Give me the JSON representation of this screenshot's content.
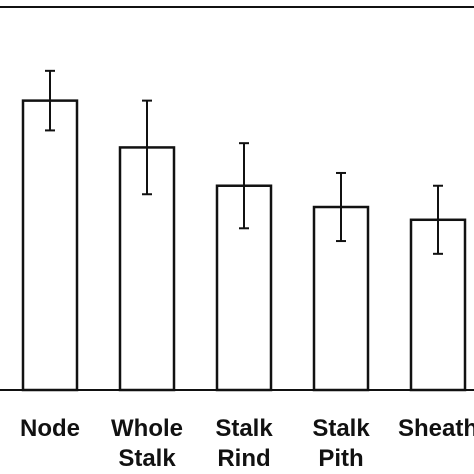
{
  "chart_data": {
    "type": "bar",
    "categories": [
      [
        "Node"
      ],
      [
        "Whole",
        "Stalk"
      ],
      [
        "Stalk",
        "Rind"
      ],
      [
        "Stalk",
        "Pith"
      ],
      [
        "Sheath"
      ]
    ],
    "values": [
      6.8,
      5.7,
      4.8,
      4.3,
      4.0
    ],
    "error": [
      0.7,
      1.1,
      1.0,
      0.8,
      0.8
    ],
    "ylim": [
      0,
      9.0
    ],
    "title": "",
    "xlabel": "",
    "ylabel": "",
    "grid": false,
    "colors": {
      "bar_fill": "#ffffff",
      "bar_stroke": "#111111",
      "axis": "#111111"
    }
  }
}
